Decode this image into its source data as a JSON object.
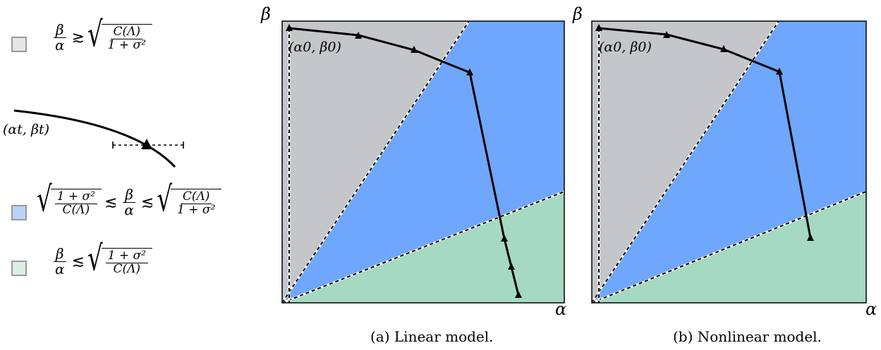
{
  "legend": {
    "gray": {
      "color": "#c5c6c9",
      "num": "β",
      "den": "α",
      "rel": "≳",
      "sqrt_num": "C(Λ)",
      "sqrt_den": "1 + σ²"
    },
    "trajectory_label": "(αt, βt)",
    "blue": {
      "color": "#a9c8f7",
      "l_num": "1 + σ²",
      "l_den": "C(Λ)",
      "rel1": "≲",
      "mid_num": "β",
      "mid_den": "α",
      "rel2": "≲",
      "r_num": "C(Λ)",
      "r_den": "1 + σ²"
    },
    "green": {
      "color": "#d2ece0",
      "num": "β",
      "den": "α",
      "rel": "≲",
      "sqrt_num": "1 + σ²",
      "sqrt_den": "C(Λ)"
    }
  },
  "panels": [
    {
      "caption": "(a) Linear model.",
      "y_axis": "β",
      "x_axis": "α",
      "start_label": "(α0, β0)"
    },
    {
      "caption": "(b) Nonlinear model.",
      "y_axis": "β",
      "x_axis": "α",
      "start_label": "(α0, β0)"
    }
  ],
  "colors": {
    "gray_region": "#c5c6c9",
    "blue_region": "#6fa7fc",
    "green_region": "#a5d9c2"
  }
}
